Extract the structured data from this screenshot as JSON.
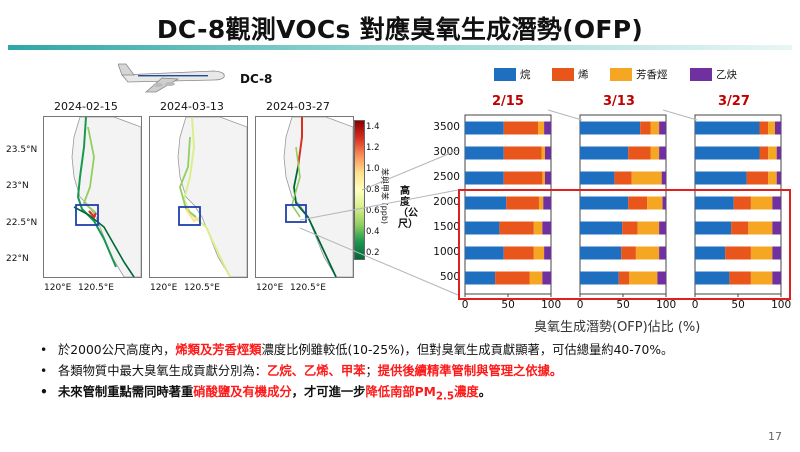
{
  "slide": {
    "title": "DC-8觀測VOCs 對應臭氧生成潛勢(OFP)",
    "page_number": "17"
  },
  "aircraft_label": "DC-8",
  "maps": {
    "dates": [
      "2024-02-15",
      "2024-03-13",
      "2024-03-27"
    ],
    "lat_labels": [
      "23.5°N",
      "23°N",
      "22.5°N",
      "22°N"
    ],
    "lon_labels": [
      "120°E",
      "120.5°E"
    ],
    "colorbar": {
      "title": "苯與甲苯 (ppb)",
      "ticks": [
        "1.4",
        "1.2",
        "1.0",
        "0.8",
        "0.6",
        "0.4",
        "0.2"
      ]
    }
  },
  "colors": {
    "alkane": "#1f6fc0",
    "alkene": "#e8561c",
    "aromatic": "#f5a623",
    "alkyne": "#7030a0",
    "highlight": "#e0201f",
    "title_bar": "#2fa6a8"
  },
  "chart_data": {
    "type": "bar",
    "orientation": "horizontal",
    "stacked": true,
    "legend": [
      "烷",
      "烯",
      "芳香烴",
      "乙炔"
    ],
    "legend_position": "top",
    "xlabel": "臭氧生成潛勢(OFP)佔比 (%)",
    "ylabel": "高度（公尺）",
    "x_ticks": [
      "0",
      "50",
      "100"
    ],
    "y_ticks": [
      "3500",
      "3000",
      "2500",
      "2000",
      "1500",
      "1000",
      "500"
    ],
    "xlim": [
      0,
      100
    ],
    "heights": [
      3500,
      3000,
      2500,
      2000,
      1500,
      1000,
      500
    ],
    "panels": [
      {
        "date": "2/15",
        "rows": [
          [
            45,
            40,
            7,
            8
          ],
          [
            45,
            44,
            4,
            7
          ],
          [
            45,
            45,
            3,
            7
          ],
          [
            48,
            38,
            5,
            9
          ],
          [
            40,
            40,
            10,
            10
          ],
          [
            45,
            35,
            12,
            8
          ],
          [
            35,
            40,
            15,
            10
          ]
        ]
      },
      {
        "date": "3/13",
        "rows": [
          [
            70,
            12,
            10,
            8
          ],
          [
            56,
            26,
            10,
            8
          ],
          [
            40,
            20,
            35,
            5
          ],
          [
            56,
            22,
            18,
            4
          ],
          [
            49,
            18,
            25,
            8
          ],
          [
            48,
            17,
            27,
            8
          ],
          [
            45,
            12,
            33,
            10
          ]
        ]
      },
      {
        "date": "3/27",
        "rows": [
          [
            75,
            10,
            8,
            7
          ],
          [
            75,
            10,
            10,
            5
          ],
          [
            60,
            25,
            10,
            5
          ],
          [
            45,
            20,
            25,
            10
          ],
          [
            42,
            20,
            28,
            10
          ],
          [
            35,
            30,
            25,
            10
          ],
          [
            40,
            25,
            25,
            10
          ]
        ]
      }
    ]
  },
  "bullets": [
    {
      "parts": [
        {
          "text": "於2000公尺高度內，",
          "style": "normal"
        },
        {
          "text": "烯類及芳香烴類",
          "style": "hl"
        },
        {
          "text": "濃度比例雖較低(10-25%)，但對臭氧生成貢獻顯著，可估總量約40-70%。",
          "style": "normal"
        }
      ]
    },
    {
      "parts": [
        {
          "text": "各類物質中最大臭氧生成貢獻分別為：",
          "style": "normal"
        },
        {
          "text": "乙烷、乙烯、甲苯",
          "style": "hl"
        },
        {
          "text": "；",
          "style": "normal"
        },
        {
          "text": "提供後續精準管制與管理之依據。",
          "style": "hl"
        }
      ]
    },
    {
      "parts": [
        {
          "text": "未來管制重點需同時著重",
          "style": "bold"
        },
        {
          "text": "硝酸鹽及有機成分",
          "style": "hl"
        },
        {
          "text": "，才可進一步",
          "style": "bold"
        },
        {
          "text": "降低南部PM",
          "style": "hl"
        },
        {
          "text": "2.5",
          "style": "hl-sub"
        },
        {
          "text": "濃度",
          "style": "hl"
        },
        {
          "text": "。",
          "style": "bold"
        }
      ]
    }
  ]
}
